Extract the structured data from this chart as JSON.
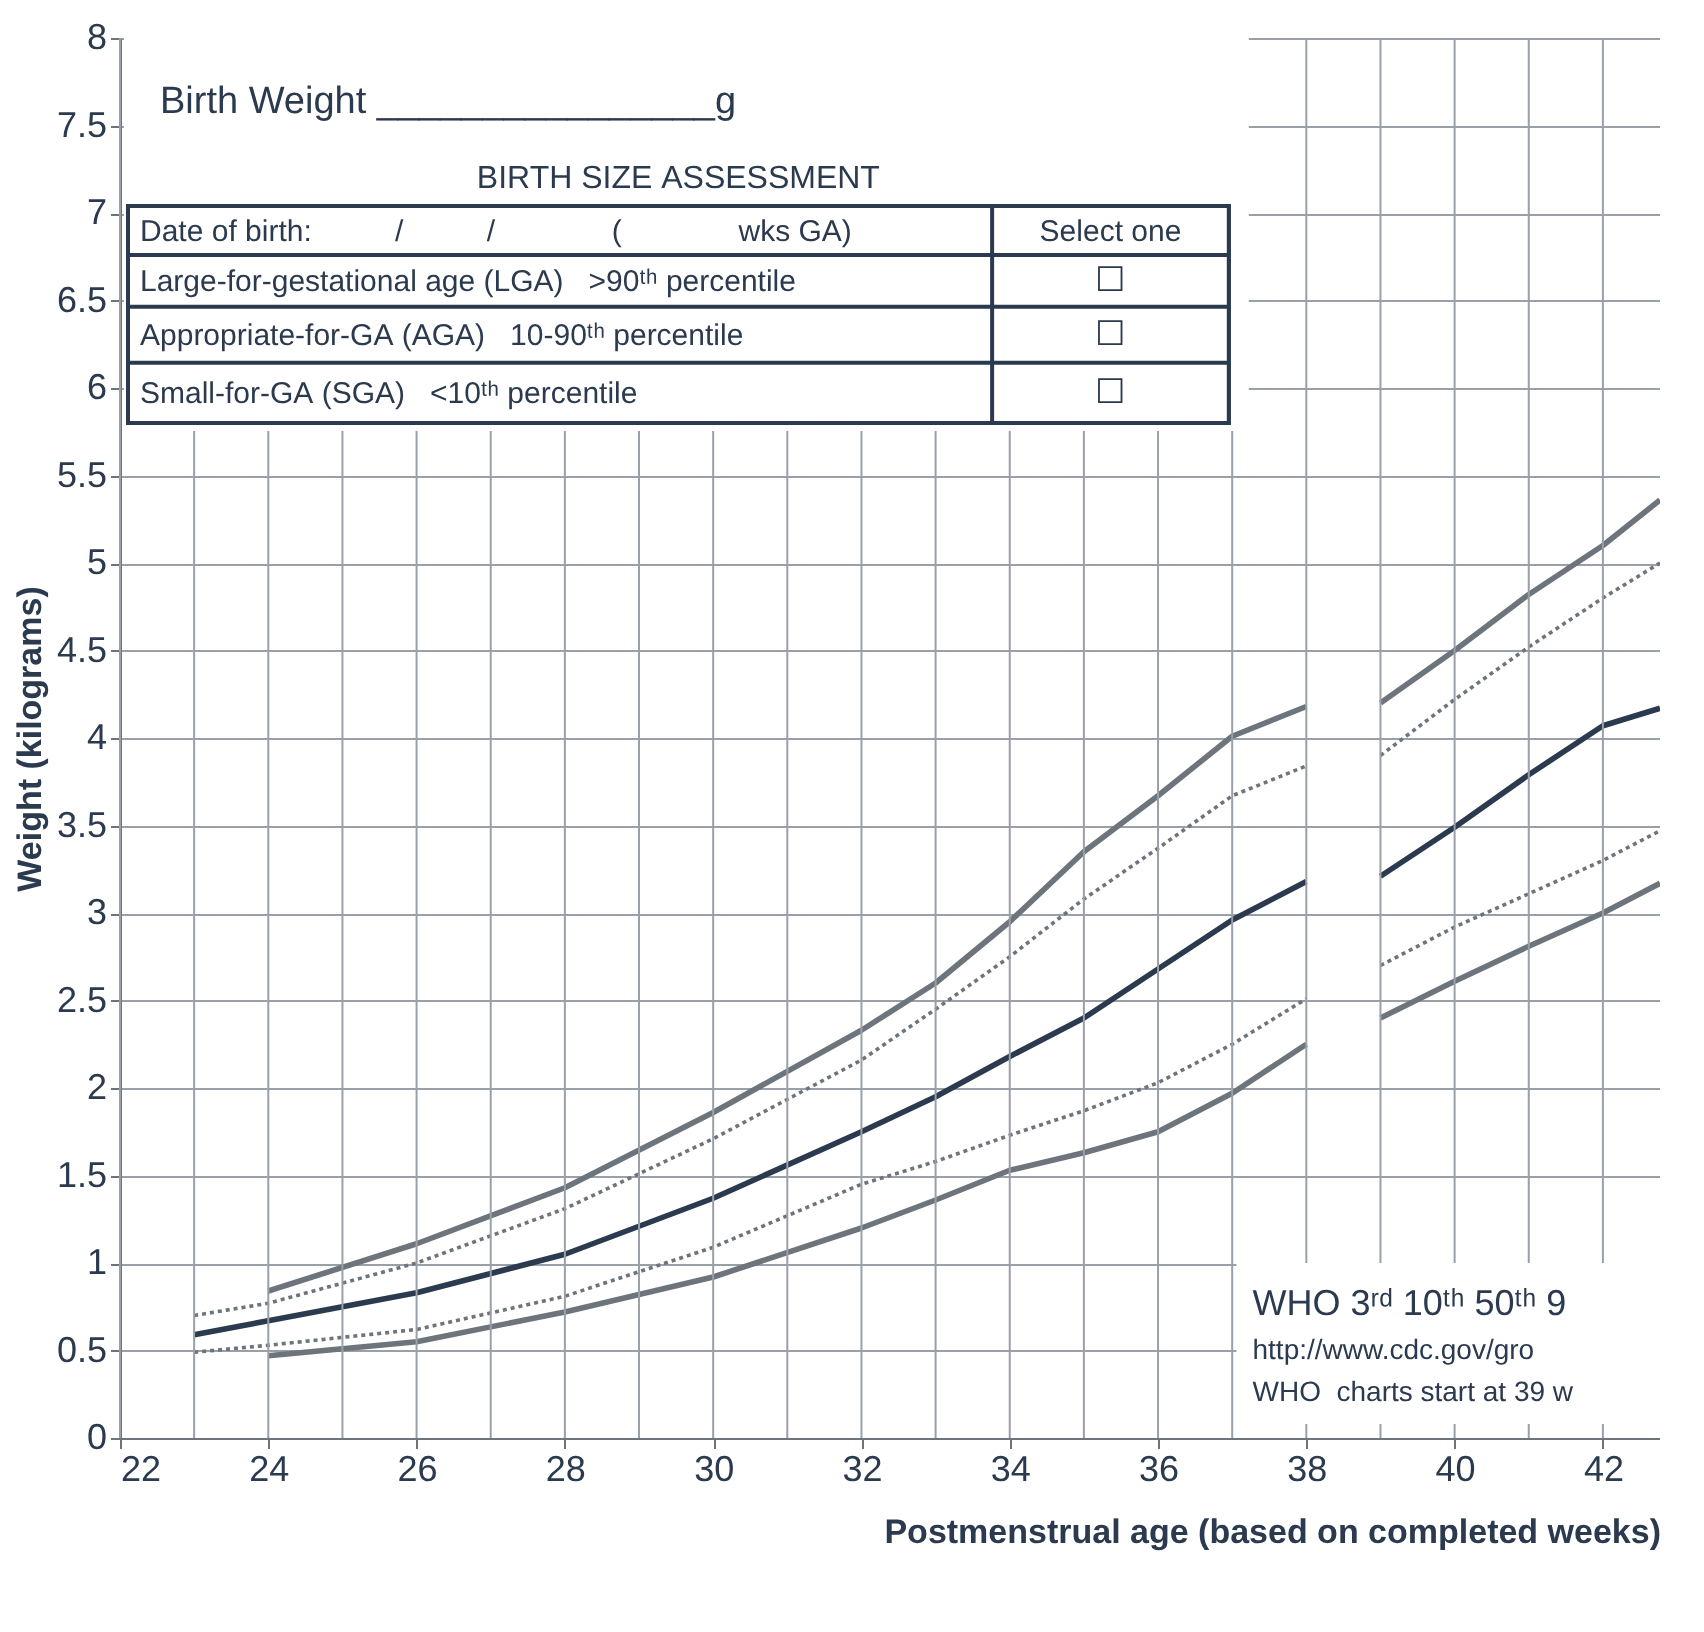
{
  "chart_data": {
    "type": "line",
    "xlabel": "Postmenstrual age (based on completed weeks)",
    "ylabel": "Weight (kilograms)",
    "xlim": [
      22,
      42.77
    ],
    "xticks": [
      22,
      {
        "value": 23,
        "label": null
      },
      24,
      {
        "value": 25,
        "label": null
      },
      26,
      {
        "value": 27,
        "label": null
      },
      28,
      {
        "value": 29,
        "label": null
      },
      30,
      {
        "value": 31,
        "label": null
      },
      32,
      {
        "value": 33,
        "label": null
      },
      34,
      {
        "value": 35,
        "label": null
      },
      36,
      {
        "value": 37,
        "label": null
      },
      38,
      {
        "value": 39,
        "label": null
      },
      40,
      {
        "value": 41,
        "label": null
      },
      42
    ],
    "ylim": [
      0,
      8
    ],
    "yticks": [
      0,
      0.5,
      1,
      1.5,
      2,
      2.5,
      3,
      3.5,
      4,
      4.5,
      5,
      5.5,
      6,
      6.5,
      7,
      7.5,
      8
    ],
    "grid": true,
    "series": [
      {
        "color": "#6e747c",
        "line_style": "solid",
        "x": [
          24,
          26,
          28,
          30,
          32,
          33,
          34,
          35,
          36,
          37,
          38,
          38.5,
          39,
          40,
          41,
          42,
          42.77
        ],
        "values": [
          0.84,
          1.11,
          1.43,
          1.86,
          2.33,
          2.6,
          2.95,
          3.35,
          3.67,
          4.01,
          4.18,
          null,
          4.2,
          4.5,
          4.82,
          5.1,
          5.36
        ]
      },
      {
        "color": "#6e747c",
        "line_style": "dotted",
        "x": [
          23,
          24,
          26,
          28,
          30,
          32,
          33,
          34,
          35,
          36,
          37,
          38,
          38.5,
          39,
          40,
          41,
          42,
          42.77
        ],
        "values": [
          0.7,
          0.77,
          1.0,
          1.31,
          1.71,
          2.16,
          2.45,
          2.75,
          3.08,
          3.37,
          3.67,
          3.84,
          null,
          3.9,
          4.22,
          4.52,
          4.8,
          5.0
        ]
      },
      {
        "color": "#2b3a4e",
        "line_style": "solid",
        "x": [
          23,
          24,
          26,
          28,
          30,
          32,
          33,
          34,
          35,
          36,
          37,
          38,
          38.5,
          39,
          40,
          41,
          42,
          42.77
        ],
        "values": [
          0.59,
          0.67,
          0.83,
          1.05,
          1.37,
          1.75,
          1.95,
          2.18,
          2.4,
          2.68,
          2.96,
          3.18,
          null,
          3.21,
          3.49,
          3.79,
          4.07,
          4.17
        ]
      },
      {
        "color": "#6e747c",
        "line_style": "dotted",
        "x": [
          23,
          24,
          26,
          28,
          30,
          32,
          33,
          34,
          35,
          36,
          37,
          38,
          38.5,
          39,
          40,
          41,
          42,
          42.77
        ],
        "values": [
          0.49,
          0.53,
          0.62,
          0.81,
          1.09,
          1.45,
          1.58,
          1.73,
          1.87,
          2.03,
          2.25,
          2.51,
          null,
          2.7,
          2.92,
          3.11,
          3.3,
          3.47
        ]
      },
      {
        "color": "#6e747c",
        "line_style": "solid",
        "x": [
          24,
          26,
          28,
          30,
          32,
          33,
          34,
          35,
          36,
          37,
          38,
          38.5,
          39,
          40,
          41,
          42,
          42.77
        ],
        "values": [
          0.47,
          0.55,
          0.72,
          0.92,
          1.2,
          1.36,
          1.53,
          1.63,
          1.75,
          1.97,
          2.25,
          null,
          2.4,
          2.61,
          2.81,
          3.0,
          3.17
        ]
      }
    ],
    "annotations": [
      "Birth Weight ________________g",
      "BIRTH SIZE ASSESSMENT",
      "Date of birth:          /          /              (              wks GA)",
      "Select one",
      "Large-for-gestational age (LGA)   >90ᵗʰ percentile",
      "Appropriate-for-GA (AGA)   10-90ᵗʰ percentile",
      "Small-for-GA (SGA)   <10ᵗʰ percentile",
      "☐",
      "☐",
      "☐",
      "WHO 3ʳᵈ 10ᵗʰ 50ᵗʰ 9",
      "http://www.cdc.gov/gro",
      "WHO  charts start at 39 w"
    ]
  }
}
